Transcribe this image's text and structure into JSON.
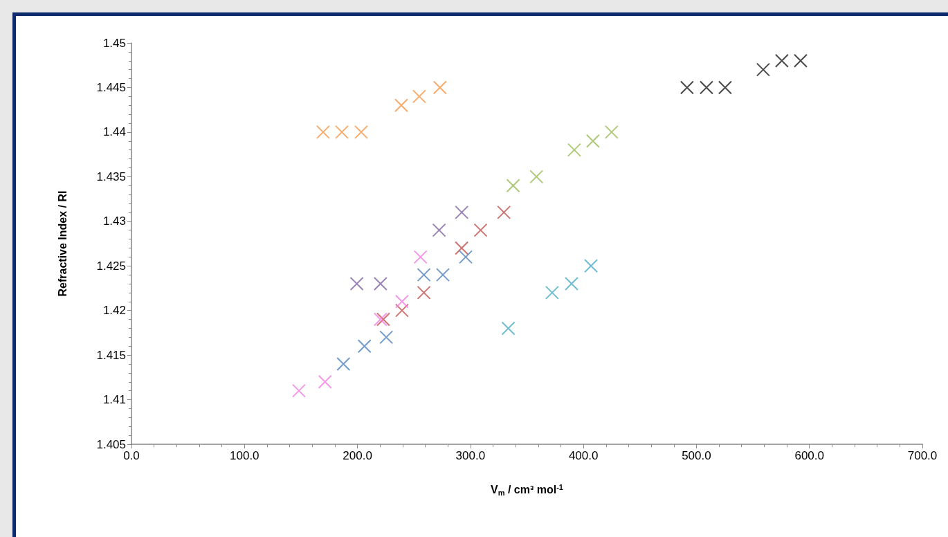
{
  "chart_data": {
    "type": "scatter",
    "xlabel": "V$_{m}$ / cm³ mol$^{-1}$",
    "ylabel": "Refractive Index / RI",
    "marker": "cross",
    "grid": false,
    "xlim": [
      0,
      700
    ],
    "xticks": [
      {
        "value": 0,
        "label": "0.0"
      },
      {
        "value": 100,
        "label": "100.0"
      },
      {
        "value": 200,
        "label": "200.0"
      },
      {
        "value": 300,
        "label": "300.0"
      },
      {
        "value": 400,
        "label": "400.0"
      },
      {
        "value": 500,
        "label": "500.0"
      },
      {
        "value": 600,
        "label": "600.0"
      },
      {
        "value": 700,
        "label": "700.0"
      }
    ],
    "ylim": [
      1.405,
      1.45
    ],
    "yticks": [
      1.405,
      1.41,
      1.415,
      1.42,
      1.425,
      1.43,
      1.435,
      1.44,
      1.445,
      1.45
    ],
    "series": [
      {
        "color": "#f79646",
        "x": [
          169.6,
          186.2,
          203.3,
          238.8,
          254.7,
          273.0
        ],
        "values": [
          1.44,
          1.44,
          1.44,
          1.443,
          1.444,
          1.445
        ]
      },
      {
        "color": "#1a1a1a",
        "x": [
          491.7,
          508.9,
          525.4,
          559.1,
          575.6,
          592.2
        ],
        "values": [
          1.445,
          1.445,
          1.445,
          1.447,
          1.448,
          1.448
        ]
      },
      {
        "color": "#9bbb59",
        "x": [
          337.8,
          358.4,
          391.9,
          408.4,
          424.9
        ],
        "values": [
          1.434,
          1.435,
          1.438,
          1.439,
          1.44
        ]
      },
      {
        "color": "#8064a2",
        "x": [
          199.4,
          220.4,
          272.3,
          292.3
        ],
        "values": [
          1.423,
          1.423,
          1.429,
          1.431
        ]
      },
      {
        "color": "#c0504d",
        "x": [
          222.9,
          239.4,
          258.8,
          292.2,
          309.0,
          329.6
        ],
        "values": [
          1.419,
          1.42,
          1.422,
          1.427,
          1.429,
          1.431
        ]
      },
      {
        "color": "#4f81bd",
        "x": [
          187.6,
          206.2,
          225.5,
          258.8,
          275.6,
          295.8
        ],
        "values": [
          1.414,
          1.416,
          1.417,
          1.424,
          1.424,
          1.426
        ]
      },
      {
        "color": "#f07ee0",
        "x": [
          148.2,
          171.3,
          220.4,
          239.4,
          255.8
        ],
        "values": [
          1.411,
          1.412,
          1.419,
          1.421,
          1.426
        ]
      },
      {
        "color": "#4bacc6",
        "x": [
          333.5,
          372.3,
          389.5,
          406.7
        ],
        "values": [
          1.418,
          1.422,
          1.423,
          1.425
        ]
      }
    ]
  }
}
